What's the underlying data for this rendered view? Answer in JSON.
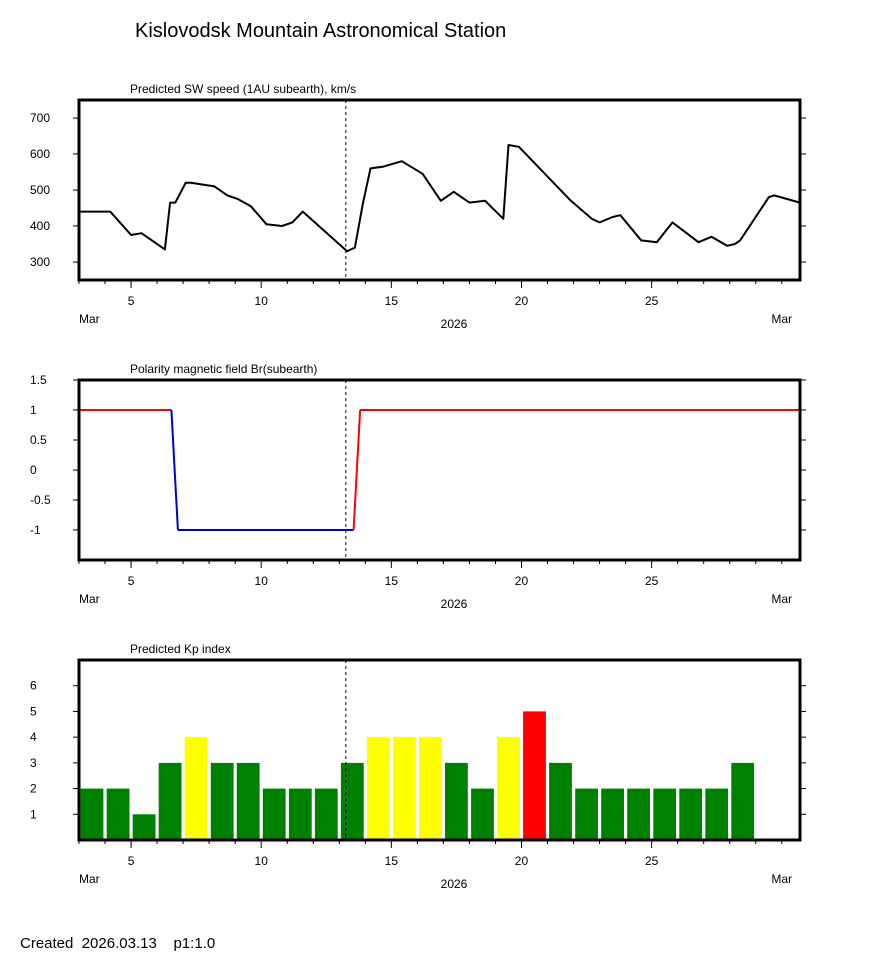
{
  "page": {
    "title": "Kislovodsk Mountain Astronomical Station",
    "footer_created_label": "Created",
    "footer_date": "2026.03.13",
    "footer_page": "p1:1.0"
  },
  "x_axis": {
    "start_day": 3,
    "end_day": 30.7,
    "ticks": [
      5,
      10,
      15,
      20,
      25
    ],
    "tick_labels": [
      "5",
      "10",
      "15",
      "20",
      "25"
    ],
    "month_left": "Mar",
    "month_right": "Mar",
    "year": "2026",
    "current_day_marker": 13.25
  },
  "colors": {
    "sw_line": "#000000",
    "polarity_positive": "#ff0000",
    "polarity_negative": "#0000cc",
    "kp_green": "#008000",
    "kp_yellow": "#ffff00",
    "kp_red": "#ff0000"
  },
  "chart_data": [
    {
      "type": "line",
      "title": "Predicted SW speed (1AU subearth), km/s",
      "ylim": [
        250,
        750
      ],
      "yticks": [
        300,
        400,
        500,
        600,
        700
      ],
      "ytick_labels": [
        "300",
        "400",
        "500",
        "600",
        "700"
      ],
      "x": [
        3,
        4.2,
        5,
        5.4,
        6.3,
        6.5,
        6.7,
        7.1,
        7.3,
        8.2,
        8.7,
        9.1,
        9.6,
        10.2,
        10.8,
        11.2,
        11.6,
        13.3,
        13.6,
        13.9,
        14.2,
        14.7,
        15.4,
        16.2,
        16.9,
        17.4,
        18.0,
        18.6,
        19.3,
        19.5,
        19.9,
        20.7,
        21.9,
        22.7,
        23.0,
        23.5,
        23.8,
        24.6,
        25.2,
        25.8,
        26.8,
        27.3,
        27.9,
        28.2,
        28.4,
        29.5,
        29.7,
        30.7
      ],
      "values": [
        440,
        440,
        375,
        380,
        335,
        465,
        465,
        520,
        520,
        510,
        485,
        475,
        455,
        405,
        400,
        410,
        440,
        330,
        340,
        460,
        560,
        565,
        580,
        545,
        470,
        495,
        465,
        470,
        420,
        625,
        620,
        560,
        470,
        420,
        410,
        425,
        430,
        360,
        355,
        410,
        355,
        370,
        345,
        350,
        360,
        480,
        485,
        465
      ]
    },
    {
      "type": "line",
      "title": "Polarity magnetic field  Br(subearth)",
      "ylim": [
        -1.5,
        1.5
      ],
      "yticks": [
        1.5,
        1,
        0.5,
        0,
        -0.5,
        -1
      ],
      "ytick_labels": [
        "1.5",
        "1",
        "0.5",
        "0",
        "-0.5",
        "-1"
      ],
      "segments": [
        {
          "x": [
            3,
            6.55
          ],
          "values": [
            1,
            1
          ],
          "polarity": "positive"
        },
        {
          "x": [
            6.55,
            6.8
          ],
          "values": [
            1,
            -1
          ],
          "polarity": "negative"
        },
        {
          "x": [
            6.8,
            13.55
          ],
          "values": [
            -1,
            -1
          ],
          "polarity": "negative"
        },
        {
          "x": [
            13.55,
            13.8
          ],
          "values": [
            -1,
            1
          ],
          "polarity": "positive"
        },
        {
          "x": [
            13.8,
            30.7
          ],
          "values": [
            1,
            1
          ],
          "polarity": "positive"
        }
      ]
    },
    {
      "type": "bar",
      "title": "Predicted Kp index",
      "ylim": [
        0,
        7
      ],
      "yticks": [
        1,
        2,
        3,
        4,
        5,
        6
      ],
      "ytick_labels": [
        "1",
        "2",
        "3",
        "4",
        "5",
        "6"
      ],
      "bar_width_days": 0.875,
      "x": [
        3.5,
        4.5,
        5.5,
        6.5,
        7.5,
        8.5,
        9.5,
        10.5,
        11.5,
        12.5,
        13.5,
        14.5,
        15.5,
        16.5,
        17.5,
        18.5,
        19.5,
        20.5,
        21.5,
        22.5,
        23.5,
        24.5,
        25.5,
        26.5,
        27.5,
        28.5
      ],
      "values": [
        2,
        2,
        1,
        3,
        4,
        3,
        3,
        2,
        2,
        2,
        3,
        4,
        4,
        4,
        3,
        2,
        4,
        5,
        3,
        2,
        2,
        2,
        2,
        2,
        2,
        3
      ],
      "colors": [
        "green",
        "green",
        "green",
        "green",
        "yellow",
        "green",
        "green",
        "green",
        "green",
        "green",
        "green",
        "yellow",
        "yellow",
        "yellow",
        "green",
        "green",
        "yellow",
        "red",
        "green",
        "green",
        "green",
        "green",
        "green",
        "green",
        "green",
        "green"
      ]
    }
  ]
}
